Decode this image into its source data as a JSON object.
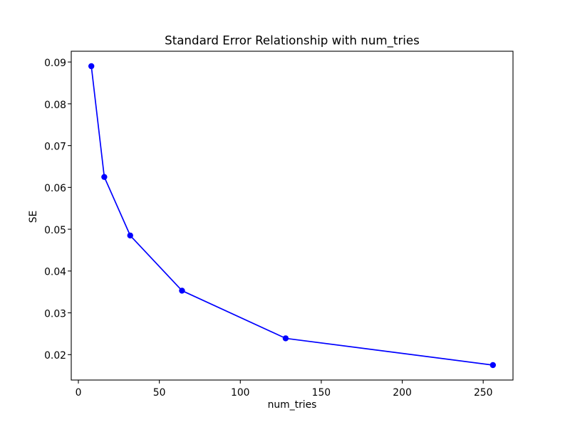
{
  "figure": {
    "background": "#ffffff",
    "text_color": "#000000"
  },
  "chart_data": {
    "type": "line",
    "title": "Standard Error Relationship with num_tries",
    "xlabel": "num_tries",
    "ylabel": "SE",
    "x": [
      8,
      16,
      32,
      64,
      128,
      256
    ],
    "y": [
      0.089,
      0.0625,
      0.0485,
      0.0353,
      0.0239,
      0.0175
    ],
    "xlim": [
      -4.4,
      268.4
    ],
    "ylim": [
      0.013925,
      0.092575
    ],
    "xticks": [
      0,
      50,
      100,
      150,
      200,
      250
    ],
    "yticks": [
      0.02,
      0.03,
      0.04,
      0.05,
      0.06,
      0.07,
      0.08,
      0.09
    ],
    "ytick_decimals": 2,
    "line_color": "#0000ff",
    "marker": "o",
    "marker_color": "#0000ff",
    "grid": false,
    "legend": null
  }
}
